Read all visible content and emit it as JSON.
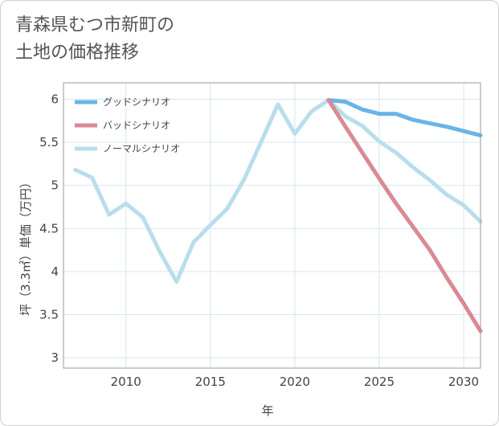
{
  "page_title_line1": "青森県むつ市新町の",
  "page_title_line2": "土地の価格推移",
  "chart_data": {
    "type": "line",
    "xlabel": "年",
    "ylabel": "坪（3.3㎡）単価（万円）",
    "xlim": [
      2006.3,
      2031
    ],
    "ylim": [
      2.88,
      6.19
    ],
    "x_ticks": [
      2010,
      2015,
      2020,
      2025,
      2030
    ],
    "y_ticks": [
      3,
      3.5,
      4,
      4.5,
      5,
      5.5,
      6
    ],
    "grid": true,
    "legend_position": "top-left",
    "series": [
      {
        "name": "グッドシナリオ",
        "color": "#6ab4e8",
        "x": [
          2022,
          2023,
          2024,
          2025,
          2026,
          2027,
          2028,
          2029,
          2030,
          2031
        ],
        "y": [
          5.99,
          5.97,
          5.88,
          5.83,
          5.83,
          5.76,
          5.72,
          5.68,
          5.63,
          5.58
        ]
      },
      {
        "name": "バッドシナリオ",
        "color": "#d98a94",
        "x": [
          2022,
          2023,
          2024,
          2025,
          2026,
          2027,
          2028,
          2029,
          2030,
          2031
        ],
        "y": [
          5.99,
          5.68,
          5.38,
          5.08,
          4.79,
          4.52,
          4.25,
          3.93,
          3.63,
          3.31
        ]
      },
      {
        "name": "ノーマルシナリオ",
        "color": "#b9deeb",
        "x": [
          2007,
          2008,
          2009,
          2010,
          2011,
          2012,
          2013,
          2014,
          2015,
          2016,
          2017,
          2018,
          2019,
          2020,
          2021,
          2022,
          2023,
          2024,
          2025,
          2026,
          2027,
          2028,
          2029,
          2030,
          2031
        ],
        "y": [
          5.18,
          5.09,
          4.66,
          4.79,
          4.63,
          4.23,
          3.88,
          4.34,
          4.54,
          4.73,
          5.07,
          5.5,
          5.94,
          5.6,
          5.86,
          5.99,
          5.8,
          5.69,
          5.51,
          5.38,
          5.21,
          5.06,
          4.89,
          4.77,
          4.58
        ]
      }
    ]
  }
}
